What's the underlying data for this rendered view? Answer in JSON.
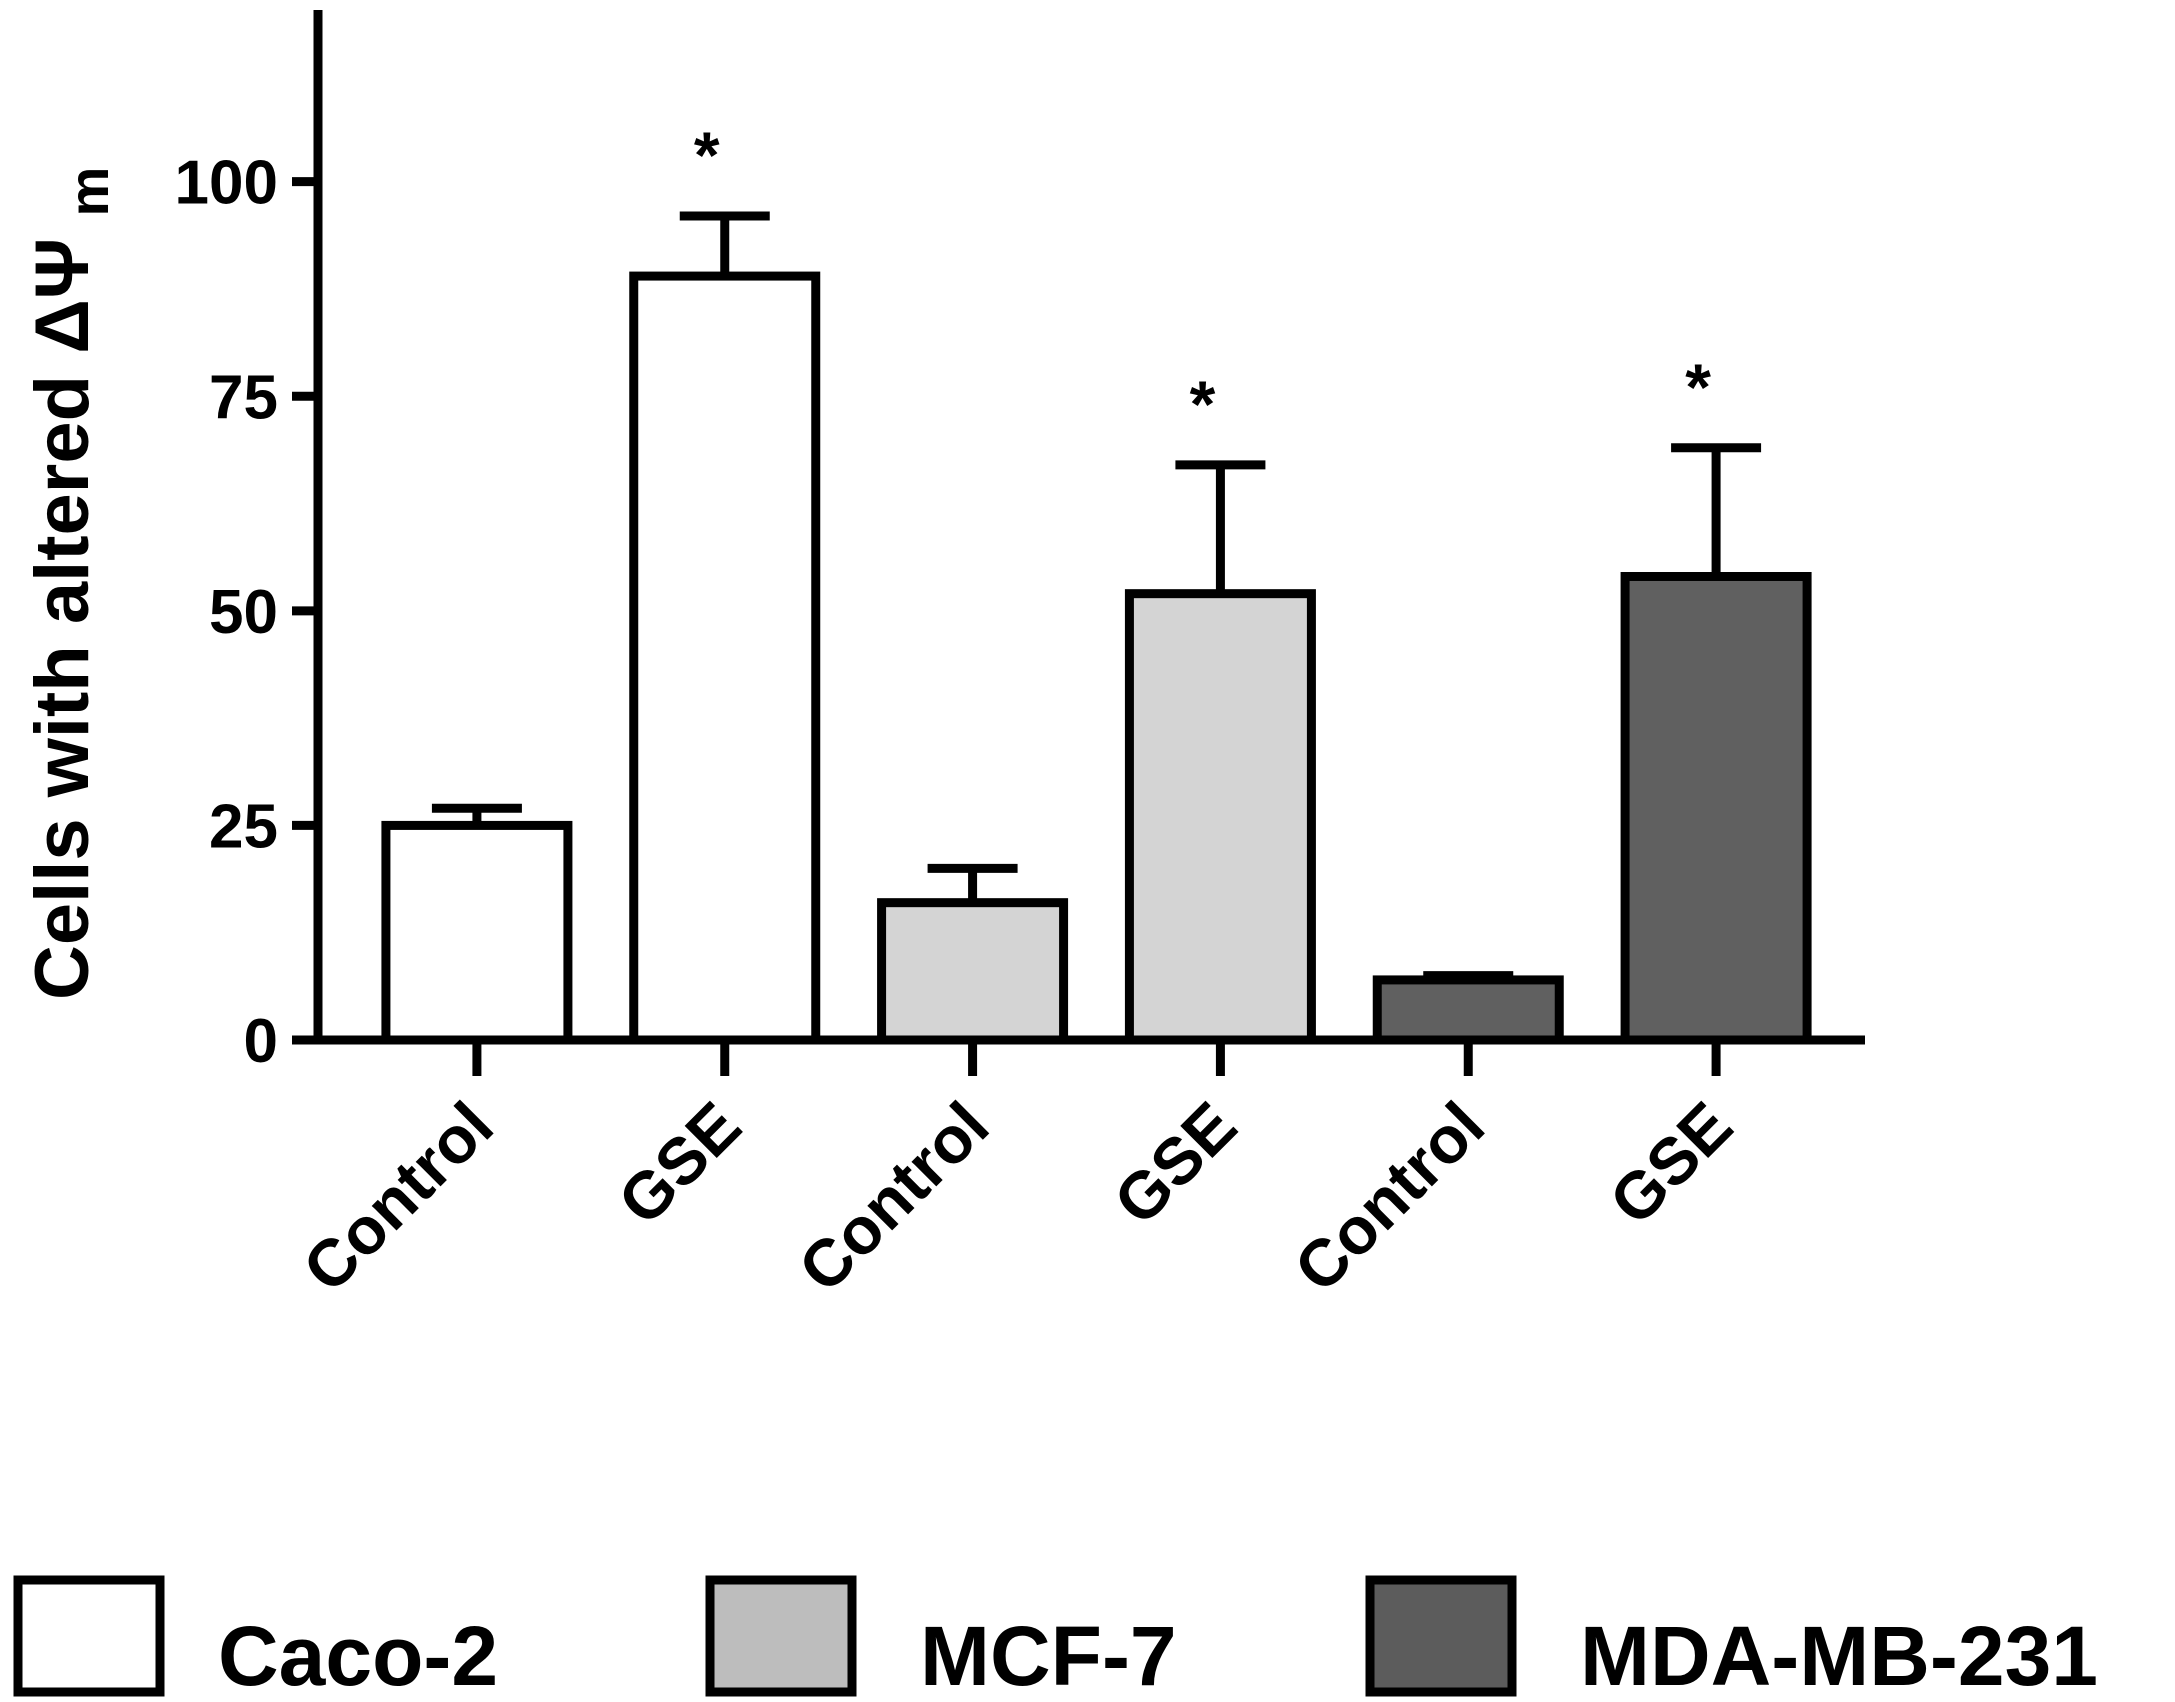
{
  "chart_data": {
    "type": "bar",
    "categories": [
      "Control",
      "GSE",
      "Control",
      "GSE",
      "Control",
      "GSE"
    ],
    "groups": [
      "Caco-2",
      "Caco-2",
      "MCF-7",
      "MCF-7",
      "MDA-MB-231",
      "MDA-MB-231"
    ],
    "values": [
      25,
      89,
      16,
      52,
      7,
      54
    ],
    "errors": [
      2,
      7,
      4,
      15,
      0.5,
      15
    ],
    "significance": [
      "",
      "*",
      "",
      "*",
      "",
      "*"
    ],
    "series": [
      {
        "name": "Caco-2",
        "color": "#ffffff"
      },
      {
        "name": "MCF-7",
        "color": "#d4d4d4"
      },
      {
        "name": "MDA-MB-231",
        "color": "#606060"
      }
    ],
    "legend_swatch_colors": [
      "#ffffff",
      "#bdbdbd",
      "#5c5c5c"
    ],
    "ylabel_main": "Cells with altered",
    "ylabel_symbol": "ΔΨ",
    "ylabel_subscript": "m",
    "xlabel": "",
    "ylim": [
      0,
      120
    ],
    "yticks": [
      0,
      25,
      50,
      75,
      100
    ],
    "grid": false,
    "legend_position": "bottom"
  }
}
